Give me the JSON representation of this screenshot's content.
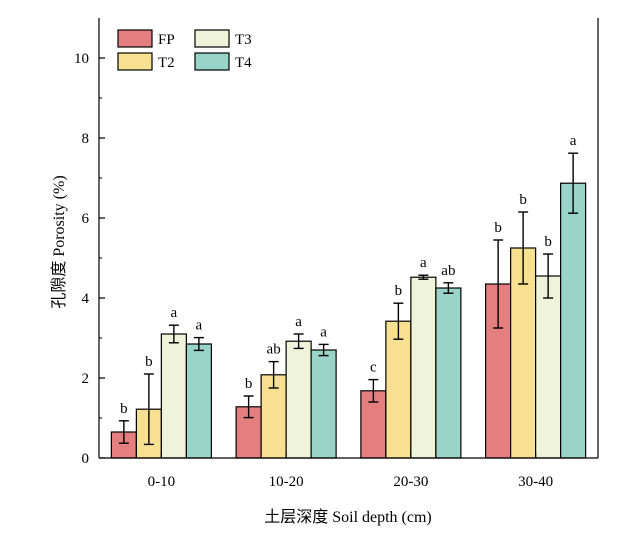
{
  "chart_data": {
    "type": "bar",
    "xlabel": "土层深度 Soil depth (cm)",
    "ylabel": "孔隙度 Porosity (%)",
    "ylim": [
      0,
      11
    ],
    "yticks": [
      0,
      2,
      4,
      6,
      8,
      10
    ],
    "categories": [
      "0-10",
      "10-20",
      "20-30",
      "30-40"
    ],
    "legend_position": "top-left",
    "series": [
      {
        "name": "FP",
        "color": "#e57f7f",
        "values": [
          0.65,
          1.28,
          1.68,
          4.35
        ],
        "errors": [
          0.28,
          0.27,
          0.28,
          1.1
        ],
        "letters": [
          "b",
          "b",
          "c",
          "b"
        ]
      },
      {
        "name": "T2",
        "color": "#f7e08f",
        "values": [
          1.22,
          2.08,
          3.42,
          5.25
        ],
        "errors": [
          0.88,
          0.33,
          0.45,
          0.9
        ],
        "letters": [
          "b",
          "ab",
          "b",
          "b"
        ]
      },
      {
        "name": "T3",
        "color": "#eef3d9",
        "values": [
          3.1,
          2.92,
          4.52,
          4.55
        ],
        "errors": [
          0.22,
          0.18,
          0.05,
          0.55
        ],
        "letters": [
          "a",
          "a",
          "a",
          "b"
        ]
      },
      {
        "name": "T4",
        "color": "#98d4c7",
        "values": [
          2.85,
          2.7,
          4.25,
          6.87
        ],
        "errors": [
          0.16,
          0.14,
          0.13,
          0.75
        ],
        "letters": [
          "a",
          "a",
          "ab",
          "a"
        ]
      }
    ]
  }
}
